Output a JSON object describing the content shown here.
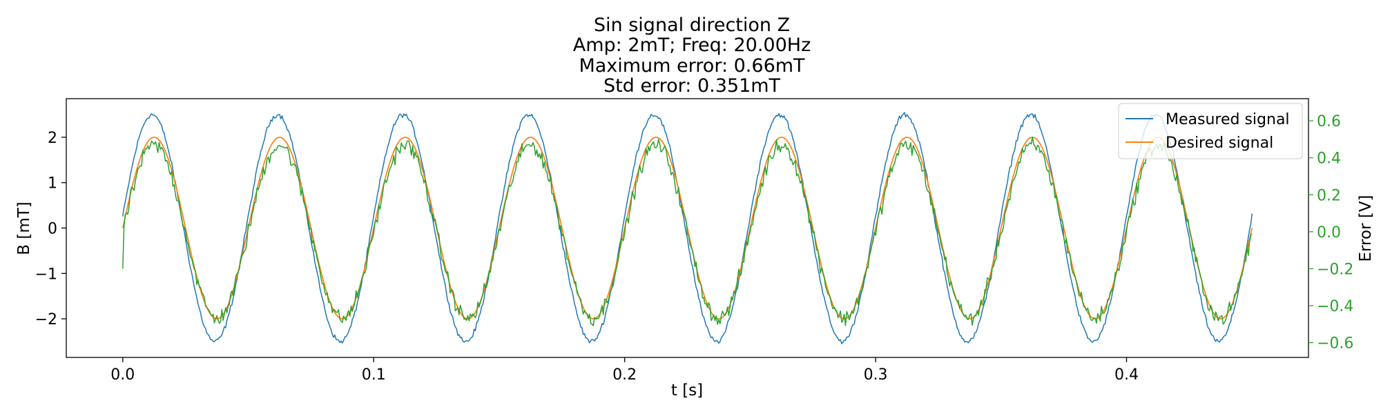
{
  "chart_data": {
    "type": "line",
    "title_lines": [
      "Sin signal direction Z",
      "Amp: 2mT; Freq: 20.00Hz",
      "Maximum error: 0.66mT",
      "Std error: 0.351mT"
    ],
    "xlabel": "t [s]",
    "ylabel": "B [mT]",
    "y2label": "Error [V]",
    "xlim": [
      -0.0225,
      0.4725
    ],
    "ylim": [
      -2.85,
      2.85
    ],
    "y2lim": [
      -0.68,
      0.72
    ],
    "x_ticks": [
      0.0,
      0.1,
      0.2,
      0.3,
      0.4
    ],
    "x_tick_labels": [
      "0.0",
      "0.1",
      "0.2",
      "0.3",
      "0.4"
    ],
    "y_ticks": [
      -2,
      -1,
      0,
      1,
      2
    ],
    "y_tick_labels": [
      "−2",
      "−1",
      "0",
      "1",
      "2"
    ],
    "y2_ticks": [
      -0.6,
      -0.4,
      -0.2,
      0.0,
      0.2,
      0.4,
      0.6
    ],
    "y2_tick_labels": [
      "−0.6",
      "−0.4",
      "−0.2",
      "0.0",
      "0.2",
      "0.4",
      "0.6"
    ],
    "legend_position": "top-right",
    "x_range": [
      0.0,
      0.45
    ],
    "series": [
      {
        "name": "Measured signal",
        "axis": "left",
        "color": "#1f77b4",
        "amplitude": 2.5,
        "frequency_hz": 20,
        "phase_shift_s": -0.0008,
        "noise": 0.08
      },
      {
        "name": "Desired signal",
        "axis": "left",
        "color": "#ff7f0e",
        "amplitude": 2.0,
        "frequency_hz": 20,
        "phase_shift_s": 0.0,
        "noise": 0.0
      },
      {
        "axis": "right",
        "color": "#2ca02c",
        "amplitude": 0.47,
        "frequency_hz": 20,
        "phase_shift_s": 0.0,
        "noise": 0.06,
        "start_value": -0.2
      }
    ],
    "y2_color": "#2ca02c",
    "grid": false
  }
}
